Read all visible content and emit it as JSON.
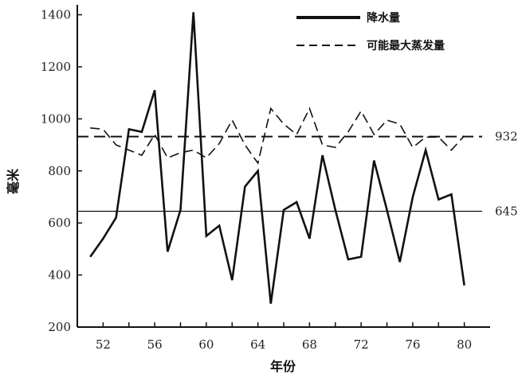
{
  "chart_data": {
    "type": "line",
    "title": "",
    "xlabel": "年份",
    "ylabel": "毫米",
    "xlim": [
      50,
      82
    ],
    "ylim": [
      200,
      1420
    ],
    "x_ticks": [
      52,
      56,
      60,
      64,
      68,
      72,
      76,
      80
    ],
    "y_ticks": [
      200,
      400,
      600,
      800,
      1000,
      1200,
      1400
    ],
    "legend_position": "top-right",
    "series": [
      {
        "name": "降水量",
        "style": "solid",
        "color": "#111111",
        "x": [
          51,
          52,
          53,
          54,
          55,
          56,
          57,
          58,
          59,
          60,
          61,
          62,
          63,
          64,
          65,
          66,
          67,
          68,
          69,
          70,
          71,
          72,
          73,
          74,
          75,
          76,
          77,
          78,
          79,
          80
        ],
        "y": [
          470,
          540,
          620,
          960,
          950,
          1110,
          490,
          650,
          1410,
          550,
          590,
          380,
          740,
          800,
          290,
          650,
          680,
          540,
          860,
          650,
          460,
          470,
          840,
          650,
          450,
          700,
          880,
          690,
          710,
          360
        ]
      },
      {
        "name": "可能最大蒸发量",
        "style": "dashed",
        "color": "#111111",
        "x": [
          51,
          52,
          53,
          54,
          55,
          56,
          57,
          58,
          59,
          60,
          61,
          62,
          63,
          64,
          65,
          66,
          67,
          68,
          69,
          70,
          71,
          72,
          73,
          74,
          75,
          76,
          77,
          78,
          79,
          80
        ],
        "y": [
          965,
          960,
          900,
          880,
          860,
          940,
          850,
          870,
          880,
          850,
          905,
          995,
          900,
          830,
          1040,
          980,
          940,
          1040,
          900,
          890,
          950,
          1030,
          940,
          995,
          980,
          890,
          930,
          930,
          880,
          935
        ]
      }
    ],
    "reference_lines": [
      {
        "value": 932,
        "label": "932",
        "style": "dashed"
      },
      {
        "value": 645,
        "label": "645",
        "style": "solid"
      }
    ]
  }
}
